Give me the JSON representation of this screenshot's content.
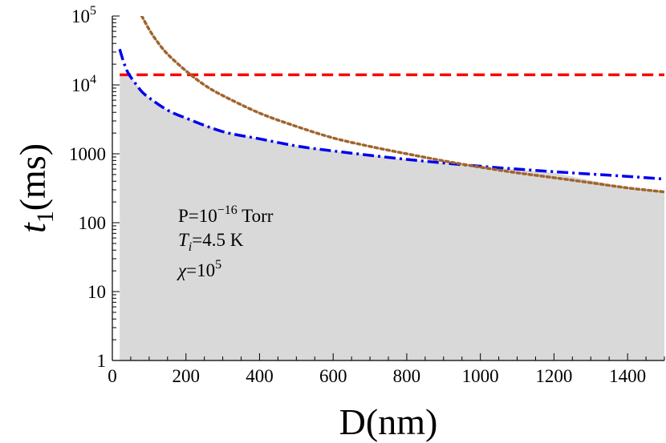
{
  "chart_data": {
    "type": "line",
    "xlabel": "D(nm)",
    "ylabel_main": "t",
    "ylabel_sub": "1",
    "ylabel_unit": "(ms)",
    "xlim": [
      0,
      1500
    ],
    "ylim": [
      1,
      100000
    ],
    "yscale": "log",
    "grid": false,
    "x_ticks": [
      0,
      200,
      400,
      600,
      800,
      1000,
      1200,
      1400
    ],
    "x_tick_labels": [
      "0",
      "200",
      "400",
      "600",
      "800",
      "1000",
      "1200",
      "1400"
    ],
    "y_ticks": [
      1,
      10,
      100,
      1000,
      10000,
      100000
    ],
    "y_tick_labels": [
      {
        "base": "1",
        "exp": ""
      },
      {
        "base": "10",
        "exp": ""
      },
      {
        "base": "100",
        "exp": ""
      },
      {
        "base": "1000",
        "exp": ""
      },
      {
        "base": "10",
        "exp": "4"
      },
      {
        "base": "10",
        "exp": "5"
      }
    ],
    "series": [
      {
        "color": "#ff0000",
        "dash": "dashed",
        "x": [
          20,
          1500
        ],
        "y": [
          14000,
          14000
        ]
      },
      {
        "color": "#0000ee",
        "dash": "dashdot",
        "x": [
          20,
          30,
          40,
          50,
          60,
          80,
          100,
          150,
          200,
          300,
          400,
          500,
          600,
          800,
          1000,
          1200,
          1400,
          1500
        ],
        "y": [
          33000,
          22000,
          16000,
          13000,
          11000,
          8000,
          6500,
          4300,
          3300,
          2100,
          1650,
          1300,
          1100,
          830,
          660,
          550,
          470,
          430
        ]
      },
      {
        "color": "#a0642d",
        "dash": "dotted",
        "x": [
          80,
          100,
          120,
          150,
          200,
          250,
          300,
          400,
          500,
          600,
          700,
          800,
          900,
          1000,
          1100,
          1200,
          1300,
          1400,
          1500
        ],
        "y": [
          100000,
          64000,
          44000,
          28000,
          16000,
          10000,
          7000,
          3900,
          2500,
          1700,
          1280,
          1000,
          790,
          640,
          530,
          450,
          380,
          320,
          280
        ]
      }
    ],
    "shaded_region": {
      "color": "#d9d9d9",
      "x": [
        20,
        30,
        40,
        50,
        60,
        80,
        100,
        150,
        200,
        300,
        400,
        500,
        600,
        800,
        1000,
        1200,
        1400,
        1500
      ],
      "y": [
        14000,
        14000,
        14000,
        13000,
        11000,
        8000,
        6500,
        4300,
        3300,
        2100,
        1650,
        1300,
        1100,
        830,
        660,
        530,
        320,
        280
      ]
    },
    "annotations": [
      {
        "parts": [
          {
            "t": "P=10"
          },
          {
            "t": "−16",
            "sup": true
          },
          {
            "t": " Torr"
          }
        ]
      },
      {
        "parts": [
          {
            "t": "T",
            "italic": true
          },
          {
            "t": "i",
            "italic": true,
            "sub": true
          },
          {
            "t": "=4.5 K"
          }
        ]
      },
      {
        "parts": [
          {
            "t": "χ",
            "italic": true
          },
          {
            "t": "=10"
          },
          {
            "t": "5",
            "sup": true
          }
        ]
      }
    ]
  }
}
